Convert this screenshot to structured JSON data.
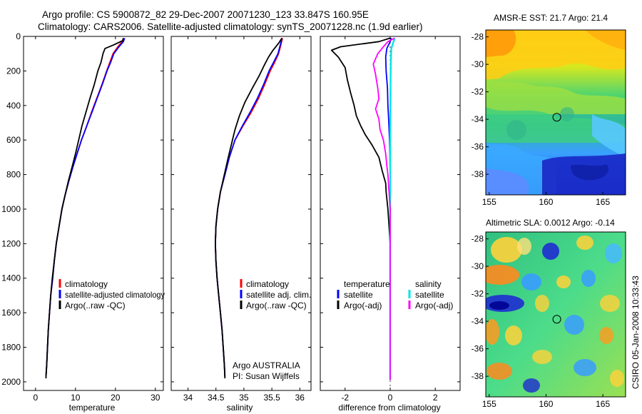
{
  "figure": {
    "title_line1": "Argo profile: CS 5900872_82 29-Dec-2007 20071230_123 33.847S 160.95E",
    "title_line2": "Climatology: CARS2006. Satellite-adjusted climatology: synTS_20071228.nc (1.9d earlier)",
    "credit": "CSIRO 05-Jan-2008 10:33:43",
    "colors": {
      "climatology": "#ff0000",
      "satellite": "#0000ff",
      "argo": "#000000",
      "salinity_satellite": "#00e5e5",
      "salinity_argo": "#ff00ff"
    }
  },
  "chart_data": [
    {
      "type": "line",
      "xlabel": "temperature",
      "ylabel": "",
      "xlim": [
        -3,
        32
      ],
      "ylim": [
        2050,
        0
      ],
      "x_ticks": [
        "0",
        "10",
        "20",
        "30"
      ],
      "y_ticks": [
        "0",
        "200",
        "400",
        "600",
        "800",
        "1000",
        "1200",
        "1400",
        "1600",
        "1800",
        "2000"
      ],
      "legend": [
        "climatology",
        "satellite-adjusted climatology",
        "Argo(..raw -QC)"
      ],
      "series": [
        {
          "name": "climatology",
          "color": "#ff0000",
          "points": [
            [
              22.0,
              10
            ],
            [
              21.7,
              30
            ],
            [
              20.6,
              60
            ],
            [
              19.4,
              100
            ],
            [
              18.6,
              150
            ],
            [
              17.8,
              200
            ],
            [
              16.6,
              280
            ],
            [
              15.3,
              360
            ],
            [
              14.0,
              440
            ],
            [
              12.8,
              520
            ],
            [
              11.5,
              600
            ],
            [
              10.4,
              680
            ],
            [
              9.3,
              760
            ],
            [
              8.3,
              840
            ],
            [
              7.4,
              920
            ],
            [
              6.6,
              1000
            ],
            [
              5.9,
              1100
            ],
            [
              5.2,
              1200
            ],
            [
              4.7,
              1300
            ],
            [
              4.3,
              1400
            ],
            [
              3.8,
              1500
            ],
            [
              3.5,
              1600
            ],
            [
              3.2,
              1700
            ],
            [
              3.0,
              1800
            ],
            [
              2.8,
              1900
            ],
            [
              2.6,
              1970
            ]
          ]
        },
        {
          "name": "satellite-adjusted climatology",
          "color": "#0000ff",
          "points": [
            [
              22.3,
              10
            ],
            [
              22.0,
              30
            ],
            [
              20.9,
              60
            ],
            [
              19.6,
              100
            ],
            [
              18.8,
              150
            ],
            [
              17.9,
              200
            ],
            [
              16.7,
              280
            ],
            [
              15.4,
              360
            ],
            [
              14.1,
              440
            ],
            [
              12.8,
              520
            ],
            [
              11.5,
              600
            ],
            [
              10.4,
              680
            ],
            [
              9.3,
              760
            ],
            [
              8.3,
              840
            ],
            [
              7.4,
              920
            ],
            [
              6.6,
              1000
            ],
            [
              5.9,
              1100
            ],
            [
              5.2,
              1200
            ],
            [
              4.7,
              1300
            ],
            [
              4.3,
              1400
            ],
            [
              3.8,
              1500
            ],
            [
              3.5,
              1600
            ],
            [
              3.2,
              1700
            ],
            [
              3.0,
              1800
            ],
            [
              2.8,
              1900
            ],
            [
              2.6,
              1970
            ]
          ]
        },
        {
          "name": "Argo(..raw -QC)",
          "color": "#000000",
          "points": [
            [
              22.0,
              10
            ],
            [
              21.8,
              25
            ],
            [
              19.5,
              50
            ],
            [
              17.4,
              70
            ],
            [
              16.9,
              100
            ],
            [
              16.4,
              150
            ],
            [
              15.6,
              200
            ],
            [
              14.7,
              280
            ],
            [
              13.6,
              360
            ],
            [
              12.6,
              440
            ],
            [
              11.6,
              520
            ],
            [
              10.8,
              600
            ],
            [
              10.0,
              680
            ],
            [
              9.1,
              760
            ],
            [
              8.2,
              840
            ],
            [
              7.4,
              920
            ],
            [
              6.6,
              1000
            ],
            [
              5.9,
              1100
            ],
            [
              5.2,
              1200
            ],
            [
              4.7,
              1300
            ],
            [
              4.2,
              1400
            ],
            [
              3.8,
              1500
            ],
            [
              3.5,
              1600
            ],
            [
              3.2,
              1700
            ],
            [
              3.0,
              1800
            ],
            [
              2.8,
              1900
            ],
            [
              2.6,
              1980
            ]
          ]
        }
      ]
    },
    {
      "type": "line",
      "xlabel": "salinity",
      "ylabel": "",
      "xlim": [
        33.7,
        36.2
      ],
      "ylim": [
        2050,
        0
      ],
      "x_ticks": [
        "34",
        "34.5",
        "35",
        "35.5",
        "36"
      ],
      "legend": [
        "climatology",
        "satellite adj. clim.",
        "Argo(..raw -QC)"
      ],
      "annotation": [
        "Argo AUSTRALIA",
        "PI: Susan Wijffels"
      ],
      "series": [
        {
          "name": "climatology",
          "color": "#ff0000",
          "points": [
            [
              35.69,
              10
            ],
            [
              35.66,
              50
            ],
            [
              35.62,
              100
            ],
            [
              35.55,
              150
            ],
            [
              35.47,
              200
            ],
            [
              35.37,
              280
            ],
            [
              35.26,
              360
            ],
            [
              35.13,
              440
            ],
            [
              34.98,
              520
            ],
            [
              34.84,
              600
            ],
            [
              34.74,
              700
            ],
            [
              34.66,
              800
            ],
            [
              34.58,
              900
            ],
            [
              34.53,
              1000
            ],
            [
              34.5,
              1100
            ],
            [
              34.49,
              1200
            ],
            [
              34.5,
              1300
            ],
            [
              34.52,
              1400
            ],
            [
              34.55,
              1500
            ],
            [
              34.58,
              1600
            ],
            [
              34.61,
              1700
            ],
            [
              34.63,
              1800
            ],
            [
              34.65,
              1900
            ],
            [
              34.66,
              1970
            ]
          ]
        },
        {
          "name": "satellite adj. clim.",
          "color": "#0000ff",
          "points": [
            [
              35.68,
              10
            ],
            [
              35.65,
              50
            ],
            [
              35.61,
              100
            ],
            [
              35.53,
              150
            ],
            [
              35.45,
              200
            ],
            [
              35.35,
              280
            ],
            [
              35.24,
              360
            ],
            [
              35.11,
              440
            ],
            [
              34.97,
              520
            ],
            [
              34.84,
              600
            ],
            [
              34.74,
              700
            ],
            [
              34.66,
              800
            ],
            [
              34.58,
              900
            ],
            [
              34.53,
              1000
            ],
            [
              34.5,
              1100
            ],
            [
              34.49,
              1200
            ],
            [
              34.5,
              1300
            ],
            [
              34.52,
              1400
            ],
            [
              34.55,
              1500
            ],
            [
              34.58,
              1600
            ],
            [
              34.61,
              1700
            ],
            [
              34.63,
              1800
            ],
            [
              34.65,
              1900
            ],
            [
              34.66,
              1970
            ]
          ]
        },
        {
          "name": "Argo(..raw -QC)",
          "color": "#000000",
          "points": [
            [
              35.68,
              10
            ],
            [
              35.62,
              40
            ],
            [
              35.52,
              80
            ],
            [
              35.44,
              120
            ],
            [
              35.36,
              170
            ],
            [
              35.27,
              230
            ],
            [
              35.15,
              300
            ],
            [
              35.02,
              380
            ],
            [
              34.92,
              460
            ],
            [
              34.84,
              540
            ],
            [
              34.78,
              620
            ],
            [
              34.72,
              700
            ],
            [
              34.65,
              800
            ],
            [
              34.58,
              900
            ],
            [
              34.53,
              1000
            ],
            [
              34.5,
              1100
            ],
            [
              34.49,
              1200
            ],
            [
              34.5,
              1300
            ],
            [
              34.52,
              1400
            ],
            [
              34.55,
              1500
            ],
            [
              34.58,
              1600
            ],
            [
              34.61,
              1700
            ],
            [
              34.63,
              1800
            ],
            [
              34.65,
              1900
            ],
            [
              34.66,
              1980
            ]
          ]
        }
      ]
    },
    {
      "type": "line",
      "xlabel": "difference from climatology",
      "ylabel": "",
      "xlim": [
        -3.1,
        3.1
      ],
      "ylim": [
        2050,
        0
      ],
      "x_ticks": [
        "-2",
        "0",
        "2"
      ],
      "legend_left": [
        "temperature",
        "satellite",
        "Argo(-adj)"
      ],
      "legend_right": [
        "salinity",
        "satellite",
        "Argo(-adj)"
      ],
      "series": [
        {
          "name": "satellite",
          "color": "#0000ff",
          "points": [
            [
              0.05,
              10
            ],
            [
              0.0,
              30
            ],
            [
              -0.15,
              70
            ],
            [
              -0.2,
              120
            ],
            [
              -0.18,
              200
            ],
            [
              -0.12,
              300
            ],
            [
              -0.1,
              400
            ],
            [
              -0.06,
              500
            ],
            [
              -0.03,
              600
            ],
            [
              -0.01,
              700
            ],
            [
              0.0,
              800
            ],
            [
              0.0,
              1000
            ],
            [
              0.0,
              1500
            ],
            [
              0.0,
              1980
            ]
          ]
        },
        {
          "name": "Argo(-adj)",
          "color": "#000000",
          "points": [
            [
              0.0,
              10
            ],
            [
              -0.5,
              30
            ],
            [
              -2.2,
              60
            ],
            [
              -2.6,
              80
            ],
            [
              -2.3,
              120
            ],
            [
              -2.0,
              180
            ],
            [
              -1.9,
              250
            ],
            [
              -1.75,
              330
            ],
            [
              -1.6,
              400
            ],
            [
              -1.5,
              460
            ],
            [
              -1.3,
              520
            ],
            [
              -1.1,
              570
            ],
            [
              -0.8,
              630
            ],
            [
              -0.5,
              700
            ],
            [
              -0.35,
              780
            ],
            [
              -0.2,
              850
            ],
            [
              -0.18,
              900
            ],
            [
              -0.1,
              1000
            ],
            [
              -0.05,
              1100
            ],
            [
              0.0,
              1200
            ],
            [
              0.0,
              1500
            ],
            [
              0.0,
              1990
            ]
          ]
        },
        {
          "name": "satellite",
          "color": "#00e5e5",
          "points": [
            [
              0.2,
              10
            ],
            [
              0.15,
              30
            ],
            [
              0.05,
              70
            ],
            [
              0.03,
              150
            ],
            [
              0.02,
              250
            ],
            [
              0.01,
              400
            ],
            [
              0.0,
              600
            ],
            [
              0.0,
              1000
            ],
            [
              0.0,
              1500
            ],
            [
              0.0,
              1990
            ]
          ]
        },
        {
          "name": "Argo(-adj)",
          "color": "#ff00ff",
          "points": [
            [
              0.2,
              10
            ],
            [
              -0.1,
              30
            ],
            [
              -0.3,
              60
            ],
            [
              -0.55,
              100
            ],
            [
              -0.75,
              160
            ],
            [
              -0.65,
              220
            ],
            [
              -0.55,
              300
            ],
            [
              -0.5,
              360
            ],
            [
              -0.65,
              420
            ],
            [
              -0.5,
              480
            ],
            [
              -0.45,
              540
            ],
            [
              -0.3,
              600
            ],
            [
              -0.2,
              680
            ],
            [
              -0.15,
              750
            ],
            [
              -0.1,
              800
            ],
            [
              -0.05,
              900
            ],
            [
              0.0,
              1000
            ],
            [
              0.0,
              1500
            ],
            [
              0.0,
              1990
            ]
          ]
        }
      ]
    },
    {
      "type": "heatmap",
      "title": "AMSR-E SST: 21.7 Argo: 21.4",
      "xlim": [
        154.7,
        167.0
      ],
      "ylim": [
        -39.5,
        -27.5
      ],
      "x_ticks": [
        "155",
        "160",
        "165"
      ],
      "y_ticks": [
        "-28",
        "-30",
        "-32",
        "-34",
        "-36",
        "-38"
      ],
      "marker": {
        "lon": 160.95,
        "lat": -33.847
      }
    },
    {
      "type": "heatmap",
      "title": "Altimetric SLA: 0.0012 Argo: -0.14",
      "xlim": [
        154.7,
        167.0
      ],
      "ylim": [
        -39.5,
        -27.5
      ],
      "x_ticks": [
        "155",
        "160",
        "165"
      ],
      "y_ticks": [
        "-28",
        "-30",
        "-32",
        "-34",
        "-36",
        "-38"
      ],
      "marker": {
        "lon": 160.95,
        "lat": -33.847
      }
    }
  ]
}
